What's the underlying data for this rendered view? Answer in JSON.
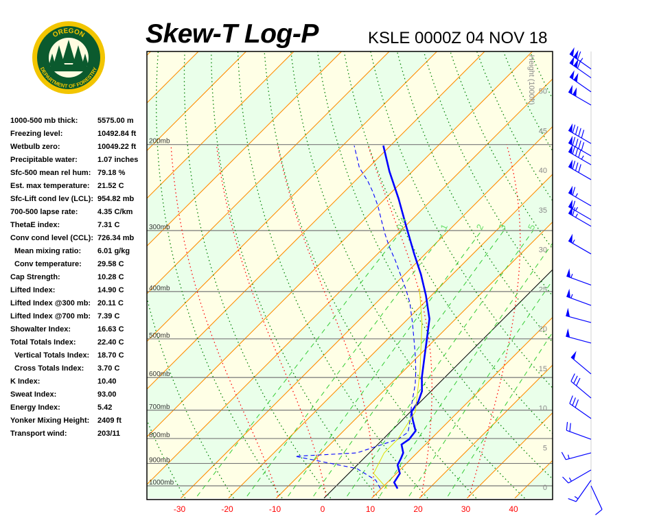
{
  "header": {
    "title": "Skew-T Log-P",
    "subtitle": "KSLE 0000Z 04 NOV 18"
  },
  "logo": {
    "text_top": "OREGON",
    "text_bottom": "DEPARTMENT OF FORESTRY",
    "colors": {
      "ring": "#f2c500",
      "field": "#0b5a2e"
    }
  },
  "stats": [
    {
      "label": "1000-500 mb thick:",
      "value": "5575.00 m"
    },
    {
      "label": "Freezing level:",
      "value": "10492.84 ft"
    },
    {
      "label": "Wetbulb zero:",
      "value": "10049.22 ft"
    },
    {
      "label": "Precipitable water:",
      "value": "1.07 inches"
    },
    {
      "label": "Sfc-500 mean rel hum:",
      "value": "79.18 %"
    },
    {
      "label": "Est. max temperature:",
      "value": "21.52 C"
    },
    {
      "label": "Sfc-Lift cond lev (LCL):",
      "value": "954.82 mb"
    },
    {
      "label": "700-500 lapse rate:",
      "value": "4.35 C/km"
    },
    {
      "label": "ThetaE index:",
      "value": "7.31 C"
    },
    {
      "label": "Conv cond level (CCL):",
      "value": "726.34 mb"
    },
    {
      "label": "Mean mixing ratio:",
      "value": "6.01 g/kg",
      "indent": true
    },
    {
      "label": "Conv temperature:",
      "value": "29.58 C",
      "indent": true
    },
    {
      "label": "Cap Strength:",
      "value": "10.28 C"
    },
    {
      "label": "Lifted Index:",
      "value": "14.90 C"
    },
    {
      "label": "Lifted Index @300 mb:",
      "value": "20.11 C"
    },
    {
      "label": "Lifted Index @700 mb:",
      "value": "7.39 C"
    },
    {
      "label": "Showalter Index:",
      "value": "16.63 C"
    },
    {
      "label": "Total Totals Index:",
      "value": "22.40 C"
    },
    {
      "label": "Vertical Totals Index:",
      "value": "18.70 C",
      "indent": true
    },
    {
      "label": "Cross Totals Index:",
      "value": "3.70 C",
      "indent": true
    },
    {
      "label": "K Index:",
      "value": "10.40"
    },
    {
      "label": "Sweat Index:",
      "value": "93.00"
    },
    {
      "label": "Energy Index:",
      "value": "5.42"
    },
    {
      "label": "Yonker Mixing Height:",
      "value": "2409 ft"
    },
    {
      "label": "Transport wind:",
      "value": "203/11"
    }
  ],
  "chart_data": {
    "type": "skew-t log-p",
    "title": "Skew-T Log-P",
    "subtitle": "KSLE 0000Z 04 NOV 18",
    "x_ticks": [
      -30,
      -20,
      -10,
      0,
      10,
      20,
      30,
      40
    ],
    "x_tick_labels": [
      "-30",
      "-20",
      "-10",
      "0",
      "10",
      "20",
      "30",
      "40"
    ],
    "xlim": [
      -37,
      48
    ],
    "pressure_levels": [
      200,
      300,
      400,
      500,
      600,
      700,
      800,
      900,
      1000
    ],
    "pressure_labels": [
      "200mb",
      "300mb",
      "400mb",
      "500mb",
      "600mb",
      "700mb",
      "800mb",
      "900mb",
      "1000mb"
    ],
    "ylim_mb": [
      1050,
      130
    ],
    "height_axis": {
      "label": "Height (1000ft)",
      "ticks": [
        0,
        5,
        10,
        15,
        20,
        25,
        30,
        35,
        40,
        45,
        50
      ]
    },
    "mixing_ratio_labels": [
      "0.4",
      "1",
      "2",
      "3",
      "5"
    ],
    "mixing_ratio_values": [
      0.4,
      1,
      2,
      3,
      5,
      8,
      12,
      20
    ],
    "colors": {
      "temperature": "#0000ff",
      "dewpoint": "#0000ff",
      "parcel": "#e0e000",
      "isotherm": "#ff8c00",
      "dry_adiabat": "#008000",
      "moist_adiabat": "#ff0000",
      "mixing_ratio": "#33cc33",
      "band_a": "#ffffe6",
      "band_b": "#eaffea",
      "x_labels": "#ff0000"
    },
    "series": [
      {
        "key": "temperature",
        "points": [
          [
            1013,
            13.4
          ],
          [
            984,
            11.4
          ],
          [
            943,
            10.7
          ],
          [
            907,
            8.5
          ],
          [
            879,
            7.8
          ],
          [
            856,
            7.1
          ],
          [
            823,
            5.0
          ],
          [
            803,
            5.5
          ],
          [
            772,
            5.1
          ],
          [
            733,
            2.2
          ],
          [
            705,
            0.2
          ],
          [
            672,
            -0.5
          ],
          [
            640,
            -1.9
          ],
          [
            600,
            -4.8
          ],
          [
            544,
            -8.6
          ],
          [
            494,
            -12.3
          ],
          [
            455,
            -15.5
          ],
          [
            407,
            -21.2
          ],
          [
            369,
            -26.6
          ],
          [
            335,
            -32.3
          ],
          [
            294,
            -39.8
          ],
          [
            258,
            -47.2
          ],
          [
            227,
            -54.8
          ],
          [
            201,
            -61.5
          ]
        ]
      },
      {
        "key": "dewpoint",
        "points": [
          [
            1013,
            9.8
          ],
          [
            974,
            7.1
          ],
          [
            922,
            0.7
          ],
          [
            870,
            -14.8
          ],
          [
            856,
            -2.6
          ],
          [
            803,
            3.1
          ],
          [
            777,
            3.8
          ],
          [
            728,
            1.4
          ],
          [
            683,
            -1.2
          ],
          [
            619,
            -4.8
          ],
          [
            581,
            -7.5
          ],
          [
            544,
            -10.5
          ],
          [
            510,
            -13.6
          ],
          [
            463,
            -18.3
          ],
          [
            420,
            -23.2
          ],
          [
            394,
            -26.9
          ],
          [
            369,
            -30.9
          ],
          [
            346,
            -34.8
          ],
          [
            324,
            -39.0
          ],
          [
            305,
            -42.6
          ],
          [
            286,
            -46.2
          ],
          [
            267,
            -50.0
          ],
          [
            250,
            -54.0
          ],
          [
            238,
            -57.2
          ],
          [
            223,
            -61.9
          ],
          [
            201,
            -67.6
          ]
        ]
      },
      {
        "key": "parcel",
        "points": [
          [
            1013,
            11.2
          ],
          [
            943,
            5.2
          ],
          [
            856,
            3.1
          ],
          [
            803,
            3.1
          ],
          [
            705,
            1.0
          ],
          [
            581,
            -6.6
          ],
          [
            463,
            -16.3
          ],
          [
            394,
            -24.0
          ]
        ]
      }
    ],
    "wind_barbs": [
      {
        "p": 140,
        "dir": 305,
        "spd": 115
      },
      {
        "p": 146,
        "dir": 305,
        "spd": 110
      },
      {
        "p": 156,
        "dir": 305,
        "spd": 100
      },
      {
        "p": 166,
        "dir": 300,
        "spd": 100
      },
      {
        "p": 199,
        "dir": 300,
        "spd": 90
      },
      {
        "p": 211,
        "dir": 300,
        "spd": 90
      },
      {
        "p": 220,
        "dir": 300,
        "spd": 85
      },
      {
        "p": 236,
        "dir": 300,
        "spd": 80
      },
      {
        "p": 267,
        "dir": 300,
        "spd": 65
      },
      {
        "p": 285,
        "dir": 300,
        "spd": 65
      },
      {
        "p": 294,
        "dir": 300,
        "spd": 65
      },
      {
        "p": 335,
        "dir": 300,
        "spd": 55
      },
      {
        "p": 388,
        "dir": 290,
        "spd": 55
      },
      {
        "p": 427,
        "dir": 290,
        "spd": 55
      },
      {
        "p": 463,
        "dir": 285,
        "spd": 50
      },
      {
        "p": 510,
        "dir": 285,
        "spd": 50
      },
      {
        "p": 590,
        "dir": 310,
        "spd": 50
      },
      {
        "p": 661,
        "dir": 310,
        "spd": 30
      },
      {
        "p": 728,
        "dir": 305,
        "spd": 30
      },
      {
        "p": 803,
        "dir": 290,
        "spd": 20
      },
      {
        "p": 856,
        "dir": 255,
        "spd": 15
      },
      {
        "p": 928,
        "dir": 240,
        "spd": 15
      },
      {
        "p": 974,
        "dir": 215,
        "spd": 15
      },
      {
        "p": 1000,
        "dir": 155,
        "spd": 10
      }
    ]
  }
}
